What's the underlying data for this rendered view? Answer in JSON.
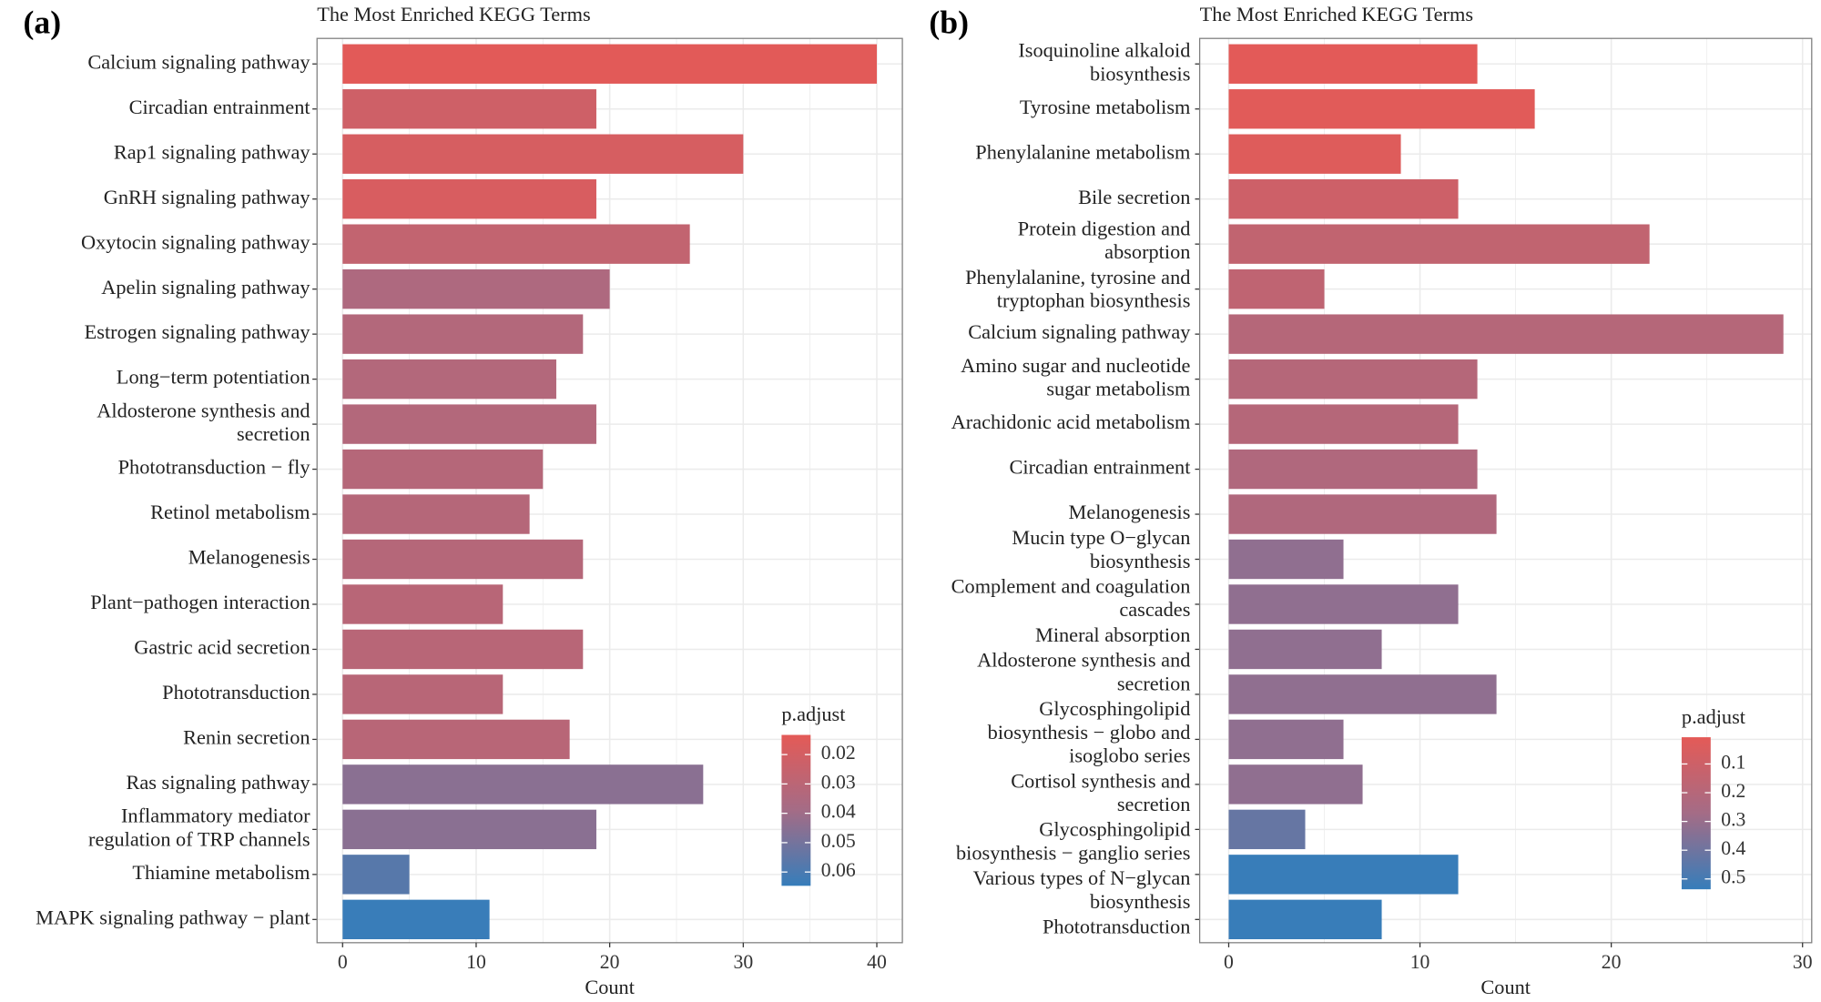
{
  "chart_data": [
    {
      "panel_label": "(a)",
      "type": "bar",
      "orientation": "horizontal",
      "title": "The Most Enriched KEGG Terms",
      "xlabel": "Count",
      "ylabel": "",
      "xlim": [
        0,
        42
      ],
      "xticks": [
        0,
        10,
        20,
        30,
        40
      ],
      "grid": true,
      "categories": [
        [
          "Calcium signaling pathway"
        ],
        [
          "Circadian entrainment"
        ],
        [
          "Rap1 signaling pathway"
        ],
        [
          "GnRH signaling pathway"
        ],
        [
          "Oxytocin signaling pathway"
        ],
        [
          "Apelin signaling pathway"
        ],
        [
          "Estrogen signaling pathway"
        ],
        [
          "Long−term potentiation"
        ],
        [
          "Aldosterone synthesis and",
          "secretion"
        ],
        [
          "Phototransduction − fly"
        ],
        [
          "Retinol metabolism"
        ],
        [
          "Melanogenesis"
        ],
        [
          "Plant−pathogen interaction"
        ],
        [
          "Gastric acid secretion"
        ],
        [
          "Phototransduction"
        ],
        [
          "Renin secretion"
        ],
        [
          "Ras signaling pathway"
        ],
        [
          "Inflammatory mediator",
          "regulation of TRP channels"
        ],
        [
          "Thiamine metabolism"
        ],
        [
          "MAPK signaling pathway − plant"
        ]
      ],
      "values": [
        40,
        19,
        30,
        19,
        26,
        20,
        18,
        16,
        19,
        15,
        14,
        18,
        12,
        18,
        12,
        17,
        27,
        19,
        5,
        11
      ],
      "p_adjust": [
        0.014,
        0.022,
        0.019,
        0.018,
        0.027,
        0.035,
        0.033,
        0.033,
        0.033,
        0.032,
        0.032,
        0.032,
        0.031,
        0.031,
        0.031,
        0.031,
        0.045,
        0.045,
        0.057,
        0.064
      ],
      "legend": {
        "title": "p.adjust",
        "placement": "bottom-right",
        "ticks": [
          "0.02",
          "0.03",
          "0.04",
          "0.05",
          "0.06"
        ],
        "tick_values": [
          0.02,
          0.03,
          0.04,
          0.05,
          0.06
        ],
        "range": [
          0.0133,
          0.0647
        ]
      }
    },
    {
      "panel_label": "(b)",
      "type": "bar",
      "orientation": "horizontal",
      "title": "The Most Enriched KEGG Terms",
      "xlabel": "Count",
      "ylabel": "",
      "xlim": [
        0,
        30.3
      ],
      "xticks": [
        0,
        10,
        20,
        30
      ],
      "grid": true,
      "categories": [
        [
          "Isoquinoline alkaloid",
          "biosynthesis"
        ],
        [
          "Tyrosine metabolism"
        ],
        [
          "Phenylalanine metabolism"
        ],
        [
          "Bile secretion"
        ],
        [
          "Protein digestion and",
          "absorption"
        ],
        [
          "Phenylalanine, tyrosine and",
          "tryptophan biosynthesis"
        ],
        [
          "Calcium signaling pathway"
        ],
        [
          "Amino sugar and nucleotide",
          "sugar metabolism"
        ],
        [
          "Arachidonic acid metabolism"
        ],
        [
          "Circadian entrainment"
        ],
        [
          "Melanogenesis"
        ],
        [
          "Mucin type O−glycan",
          "biosynthesis"
        ],
        [
          "Complement and coagulation",
          "cascades"
        ],
        [
          "Mineral absorption"
        ],
        [
          "Aldosterone synthesis and",
          "secretion"
        ],
        [
          "Glycosphingolipid",
          "biosynthesis − globo and",
          "isoglobo series"
        ],
        [
          "Cortisol synthesis and",
          "secretion"
        ],
        [
          "Glycosphingolipid",
          "biosynthesis − ganglio series"
        ],
        [
          "Various types of N−glycan",
          "biosynthesis"
        ],
        [
          "Phototransduction"
        ]
      ],
      "values": [
        13,
        16,
        9,
        12,
        22,
        5,
        29,
        13,
        12,
        13,
        14,
        6,
        12,
        8,
        14,
        6,
        7,
        4,
        12,
        8
      ],
      "p_adjust": [
        0.01,
        0.02,
        0.03,
        0.1,
        0.15,
        0.16,
        0.2,
        0.2,
        0.2,
        0.22,
        0.22,
        0.32,
        0.32,
        0.32,
        0.32,
        0.32,
        0.32,
        0.42,
        0.53,
        0.53
      ],
      "legend": {
        "title": "p.adjust",
        "placement": "bottom-right",
        "ticks": [
          "0.1",
          "0.2",
          "0.3",
          "0.4",
          "0.5"
        ],
        "tick_values": [
          0.1,
          0.2,
          0.3,
          0.4,
          0.5
        ],
        "range": [
          0.007,
          0.536
        ]
      }
    }
  ],
  "colors": {
    "low_p": "#E45A57",
    "mid_p": "#A46C86",
    "high_p": "#367DBA",
    "grid": "#EBEBEB",
    "border": "#7F7F7F"
  }
}
